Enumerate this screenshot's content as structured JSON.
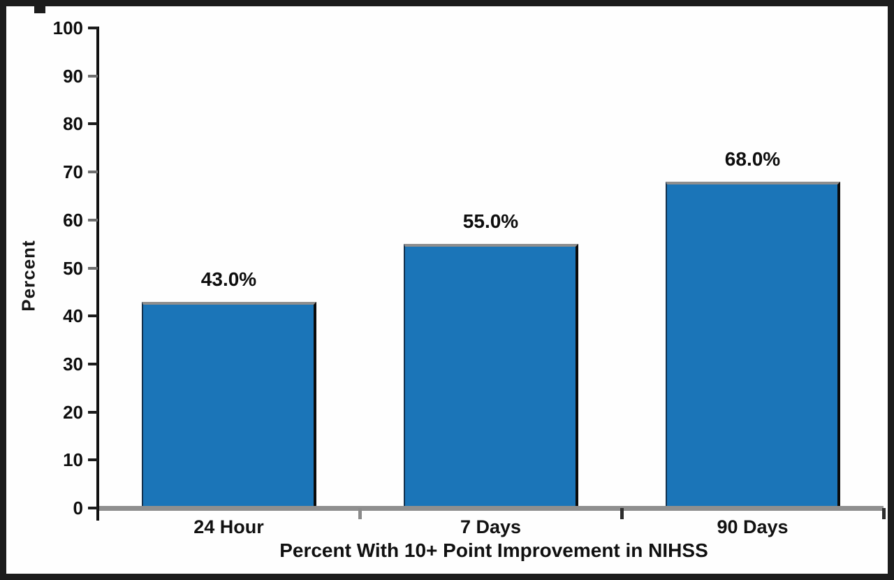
{
  "figure": {
    "background_color": "#fefefe",
    "border_color": "#1c1c1c"
  },
  "chart_data": {
    "type": "bar",
    "title": "",
    "categories": [
      "24 Hour",
      "7 Days",
      "90 Days"
    ],
    "values": [
      43.0,
      55.0,
      68.0
    ],
    "value_labels": [
      "43.0%",
      "55.0%",
      "68.0%"
    ],
    "xlabel": "Percent With 10+ Point Improvement in NIHSS",
    "ylabel": "Percent",
    "ylim": [
      0,
      100
    ],
    "y_tick_step": 10,
    "y_tick_labels": [
      "0",
      "10",
      "20",
      "30",
      "40",
      "50",
      "60",
      "70",
      "80",
      "90",
      "100"
    ],
    "grid": "off",
    "legend": "none",
    "bar_fill_color": "#1b75b8",
    "bar_top_border_color": "#8e8e8e",
    "bar_right_border_color": "#0b0b0b",
    "axis_line_color": "#111111",
    "baseline_color": "#8f8f8f"
  }
}
